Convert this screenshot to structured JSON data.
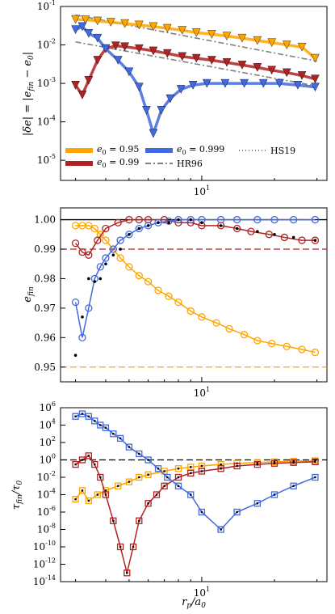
{
  "chart_data": [
    {
      "type": "scatter",
      "ylabel": "|δe| = |e_fin − e0|",
      "yscale": "log",
      "xscale": "log",
      "xlim": [
        2.6,
        33
      ],
      "ylim": [
        3e-06,
        0.1
      ],
      "yticks": [
        "10^-5",
        "10^-4",
        "10^-3",
        "10^-2",
        "10^-1"
      ],
      "xticks": [
        "10^1"
      ],
      "legend": [
        {
          "label": "e0 = 0.95",
          "color": "#ffa500",
          "kind": "band"
        },
        {
          "label": "e0 = 0.99",
          "color": "#b22222",
          "kind": "band"
        },
        {
          "label": "e0 = 0.999",
          "color": "#4169e1",
          "kind": "band"
        },
        {
          "label": "HR96",
          "color": "#808080",
          "kind": "dashdot"
        },
        {
          "label": "HS19",
          "color": "#808080",
          "kind": "dotted"
        }
      ],
      "series": [
        {
          "name": "e0 = 0.95",
          "x": [
            3.0,
            3.3,
            3.7,
            4.2,
            4.8,
            5.5,
            6.3,
            7.2,
            8.3,
            9.5,
            11,
            12.7,
            14.7,
            17,
            19.5,
            22.5,
            26,
            29.5
          ],
          "y": [
            0.046,
            0.045,
            0.042,
            0.039,
            0.036,
            0.033,
            0.03,
            0.027,
            0.024,
            0.021,
            0.019,
            0.017,
            0.015,
            0.013,
            0.0115,
            0.01,
            0.0088,
            0.0045
          ]
        },
        {
          "name": "e0 = 0.99",
          "x": [
            3.0,
            3.2,
            3.4,
            3.7,
            4.0,
            4.4,
            4.8,
            5.5,
            6.3,
            7.2,
            8.3,
            9.5,
            11,
            12.7,
            14.7,
            17,
            19.5,
            22.5,
            26,
            29.5
          ],
          "y": [
            0.0009,
            0.0005,
            0.0012,
            0.004,
            0.008,
            0.0095,
            0.009,
            0.008,
            0.007,
            0.006,
            0.005,
            0.0045,
            0.004,
            0.0035,
            0.003,
            0.0026,
            0.0022,
            0.0019,
            0.0016,
            0.0013
          ]
        },
        {
          "name": "e0 = 0.999",
          "x": [
            3.0,
            3.2,
            3.4,
            3.7,
            4.0,
            4.5,
            5.0,
            5.5,
            5.9,
            6.3,
            6.8,
            7.4,
            8.2,
            9.2,
            10.5,
            12.5,
            15,
            18,
            21,
            25,
            29.5
          ],
          "y": [
            0.025,
            0.03,
            0.02,
            0.015,
            0.008,
            0.004,
            0.002,
            0.0008,
            0.0002,
            5e-05,
            0.0002,
            0.0004,
            0.0007,
            0.0009,
            0.001,
            0.001,
            0.001,
            0.001,
            0.001,
            0.0009,
            0.0008
          ]
        }
      ]
    },
    {
      "type": "line",
      "ylabel": "e_fin",
      "xscale": "log",
      "xlim": [
        2.6,
        33
      ],
      "ylim": [
        0.945,
        1.004
      ],
      "yticks": [
        "0.95",
        "0.96",
        "0.97",
        "0.98",
        "0.99",
        "1.00"
      ],
      "xticks": [
        "10^1"
      ],
      "series": [
        {
          "name": "e0 = 0.95",
          "x": [
            3.0,
            3.2,
            3.4,
            3.6,
            3.8,
            4.0,
            4.3,
            4.6,
            5.0,
            5.5,
            6.0,
            6.6,
            7.3,
            8.0,
            9.0,
            10,
            11.5,
            13,
            15,
            17,
            19.5,
            22.5,
            26,
            29.5
          ],
          "y": [
            0.998,
            0.998,
            0.998,
            0.997,
            0.995,
            0.993,
            0.99,
            0.987,
            0.984,
            0.981,
            0.979,
            0.976,
            0.974,
            0.972,
            0.969,
            0.967,
            0.965,
            0.963,
            0.961,
            0.959,
            0.958,
            0.957,
            0.956,
            0.955
          ]
        },
        {
          "name": "e0 = 0.99",
          "x": [
            3.0,
            3.2,
            3.4,
            3.7,
            4.0,
            4.5,
            5.0,
            5.5,
            6.0,
            7.0,
            8.0,
            9.0,
            10,
            12,
            14,
            16,
            19,
            22,
            26,
            29.5
          ],
          "y": [
            0.992,
            0.989,
            0.988,
            0.993,
            0.997,
            0.999,
            1.0,
            1.0,
            1.0,
            1.0,
            0.999,
            0.999,
            0.998,
            0.998,
            0.997,
            0.996,
            0.995,
            0.994,
            0.993,
            0.993
          ]
        },
        {
          "name": "e0 = 0.999",
          "x": [
            3.0,
            3.2,
            3.4,
            3.6,
            3.8,
            4.0,
            4.3,
            4.6,
            5.0,
            5.5,
            6.0,
            6.6,
            7.3,
            8.0,
            9.0,
            10,
            12,
            14,
            17,
            20,
            24,
            29.5
          ],
          "y": [
            0.972,
            0.96,
            0.97,
            0.98,
            0.984,
            0.987,
            0.99,
            0.993,
            0.995,
            0.997,
            0.998,
            0.999,
            0.9995,
            1.0,
            1.0,
            1.0,
            1.0,
            1.0,
            1.0,
            1.0,
            1.0,
            1.0
          ]
        },
        {
          "name": "reference",
          "x": [
            3.0,
            3.2,
            3.4,
            3.6,
            3.8,
            4.0,
            4.3,
            4.6,
            5.0,
            5.5,
            6.0,
            6.6,
            7.3,
            8.0,
            9.0,
            10,
            12,
            14,
            17,
            20,
            24,
            29.5
          ],
          "y": [
            0.954,
            0.967,
            0.98,
            0.979,
            0.98,
            0.985,
            0.988,
            0.99,
            0.995,
            0.997,
            0.998,
            0.999,
            0.999,
            1.0,
            1.0,
            0.999,
            0.998,
            0.997,
            0.996,
            0.995,
            0.994,
            0.993
          ]
        }
      ],
      "hlines": [
        {
          "y": 0.95,
          "color": "#ffa500"
        },
        {
          "y": 0.99,
          "color": "#b22222"
        },
        {
          "y": 1.0,
          "color": "#000000"
        }
      ]
    },
    {
      "type": "line",
      "ylabel": "τ_fin/τ0",
      "xlabel": "r_p/a0",
      "yscale": "log",
      "xscale": "log",
      "xlim": [
        2.6,
        33
      ],
      "ylim": [
        1e-14,
        1000000.0
      ],
      "yticks": [
        "10^-14",
        "10^-12",
        "10^-10",
        "10^-8",
        "10^-6",
        "10^-4",
        "10^-2",
        "10^0",
        "10^2",
        "10^4",
        "10^6"
      ],
      "xticks": [
        "10^1"
      ],
      "series": [
        {
          "name": "e0 = 0.95",
          "x": [
            3.0,
            3.2,
            3.4,
            3.7,
            4.0,
            4.5,
            5.0,
            5.5,
            6.0,
            7.0,
            8.0,
            9.0,
            10,
            12,
            14,
            17,
            20,
            24,
            29.5
          ],
          "y": [
            3e-05,
            0.0003,
            2e-05,
            0.0001,
            0.0003,
            0.001,
            0.003,
            0.01,
            0.02,
            0.05,
            0.1,
            0.15,
            0.2,
            0.3,
            0.4,
            0.5,
            0.6,
            0.7,
            0.8
          ]
        },
        {
          "name": "e0 = 0.99",
          "x": [
            3.0,
            3.2,
            3.4,
            3.6,
            3.8,
            4.0,
            4.3,
            4.6,
            4.9,
            5.2,
            5.5,
            6.0,
            6.5,
            7.0,
            8.0,
            9.0,
            10,
            12,
            14,
            17,
            20,
            24,
            29.5
          ],
          "y": [
            0.3,
            1,
            3,
            0.3,
            0.01,
            0.0001,
            1e-07,
            1e-10,
            1e-13,
            1e-10,
            1e-07,
            1e-05,
            0.0001,
            0.001,
            0.01,
            0.03,
            0.05,
            0.1,
            0.2,
            0.3,
            0.4,
            0.5,
            0.6
          ]
        },
        {
          "name": "e0 = 0.999",
          "x": [
            3.0,
            3.2,
            3.4,
            3.6,
            3.8,
            4.0,
            4.3,
            4.6,
            5.0,
            5.5,
            6.0,
            6.6,
            7.2,
            8.0,
            9.0,
            10,
            12,
            14,
            17,
            20,
            24,
            29.5
          ],
          "y": [
            100000.0,
            200000.0,
            100000.0,
            30000.0,
            10000.0,
            5000.0,
            1000.0,
            300,
            30,
            5,
            1,
            0.1,
            0.01,
            0.001,
            0.0001,
            1e-06,
            1e-08,
            1e-06,
            1e-05,
            0.0001,
            0.001,
            0.01
          ]
        }
      ],
      "hlines": [
        {
          "y": 1,
          "color": "#000000"
        }
      ]
    }
  ]
}
